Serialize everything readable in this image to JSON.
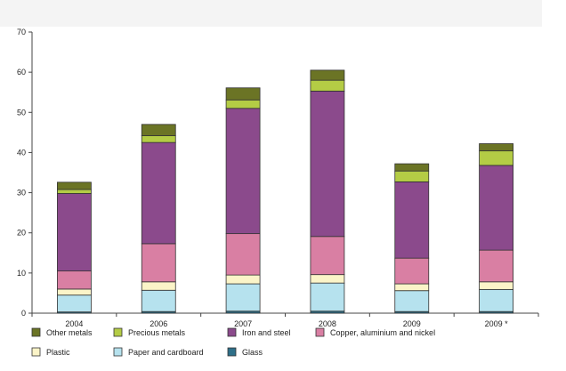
{
  "chart_data": {
    "type": "bar",
    "stacked": true,
    "title": "",
    "xlabel": "",
    "ylabel": "",
    "ylim": [
      0,
      70
    ],
    "yticks": [
      0,
      10,
      20,
      30,
      40,
      50,
      60,
      70
    ],
    "categories": [
      "2004",
      "2006",
      "2007",
      "2008",
      "2009",
      "2009 *"
    ],
    "grid": false,
    "legend_position": "bottom",
    "series": [
      {
        "name": "Glass",
        "color": "#2e6f88",
        "values": [
          0.3,
          0.4,
          0.5,
          0.5,
          0.4,
          0.4
        ]
      },
      {
        "name": "Paper and cardboard",
        "color": "#b6e2ee",
        "values": [
          4.2,
          5.3,
          6.8,
          7.0,
          5.2,
          5.5
        ]
      },
      {
        "name": "Plastic",
        "color": "#fbf4c8",
        "values": [
          1.5,
          2.1,
          2.2,
          2.1,
          1.7,
          1.9
        ]
      },
      {
        "name": "Copper, aluminium and nickel",
        "color": "#d97fa3",
        "values": [
          4.5,
          9.5,
          10.3,
          9.5,
          6.4,
          7.9
        ]
      },
      {
        "name": "Iron and steel",
        "color": "#8b4a8c",
        "values": [
          19.3,
          25.2,
          31.2,
          36.2,
          19.0,
          21.1
        ]
      },
      {
        "name": "Precious metals",
        "color": "#b4cc45",
        "values": [
          1.0,
          1.7,
          2.1,
          2.7,
          2.7,
          3.6
        ]
      },
      {
        "name": "Other metals",
        "color": "#6b7425",
        "values": [
          1.8,
          2.8,
          3.0,
          2.5,
          1.8,
          1.8
        ]
      }
    ],
    "legend_order": [
      "Other metals",
      "Precious metals",
      "Iron and steel",
      "Copper, aluminium and nickel",
      "Plastic",
      "Paper and cardboard",
      "Glass"
    ]
  }
}
